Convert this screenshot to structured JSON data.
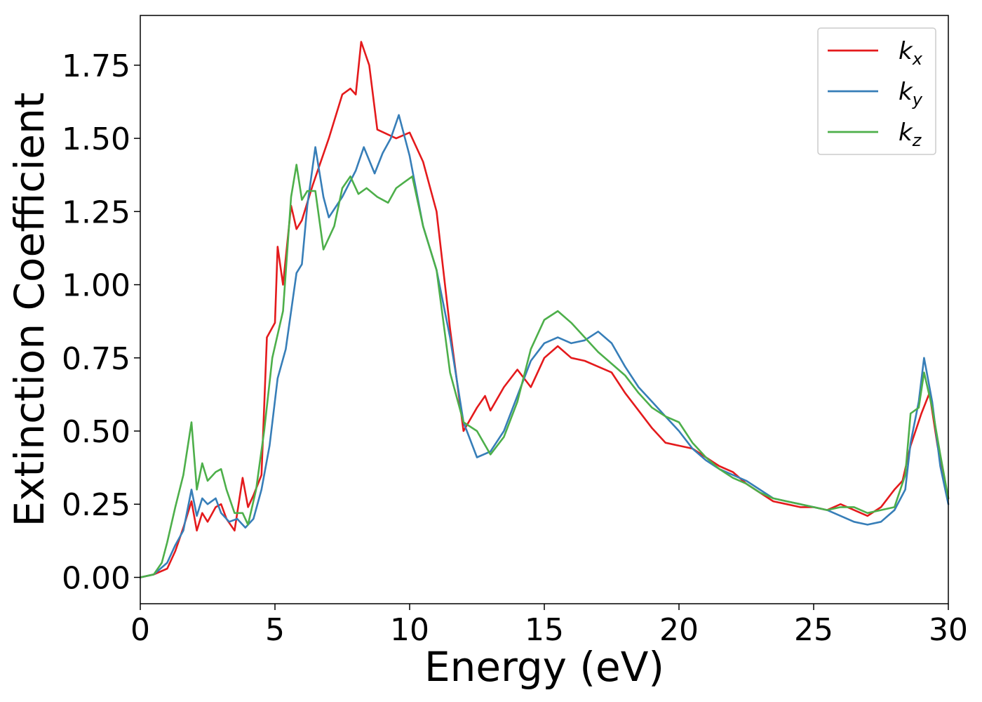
{
  "chart_data": {
    "type": "line",
    "title": "",
    "xlabel": "Energy (eV)",
    "ylabel": "Extinction Coefficient",
    "xlim": [
      0,
      30
    ],
    "ylim": [
      -0.09,
      1.92
    ],
    "xticks": [
      0,
      5,
      10,
      15,
      20,
      25,
      30
    ],
    "xtick_labels": [
      "0",
      "5",
      "10",
      "15",
      "20",
      "25",
      "30"
    ],
    "yticks": [
      0,
      0.25,
      0.5,
      0.75,
      1.0,
      1.25,
      1.5,
      1.75
    ],
    "ytick_labels": [
      "0.00",
      "0.25",
      "0.50",
      "0.75",
      "1.00",
      "1.25",
      "1.50",
      "1.75"
    ],
    "grid": false,
    "legend_position": "top-right",
    "series": [
      {
        "name": "k_x",
        "label_base": "k",
        "label_sub": "x",
        "color": "#e41a1c",
        "points": [
          [
            0,
            0
          ],
          [
            0.5,
            0.01
          ],
          [
            1.0,
            0.03
          ],
          [
            1.3,
            0.09
          ],
          [
            1.6,
            0.17
          ],
          [
            1.9,
            0.26
          ],
          [
            2.1,
            0.16
          ],
          [
            2.3,
            0.22
          ],
          [
            2.5,
            0.19
          ],
          [
            2.8,
            0.24
          ],
          [
            3.0,
            0.25
          ],
          [
            3.2,
            0.2
          ],
          [
            3.5,
            0.16
          ],
          [
            3.8,
            0.34
          ],
          [
            4.0,
            0.24
          ],
          [
            4.2,
            0.28
          ],
          [
            4.5,
            0.35
          ],
          [
            4.7,
            0.82
          ],
          [
            5.0,
            0.87
          ],
          [
            5.1,
            1.13
          ],
          [
            5.3,
            1.0
          ],
          [
            5.6,
            1.27
          ],
          [
            5.8,
            1.19
          ],
          [
            6.0,
            1.22
          ],
          [
            6.4,
            1.34
          ],
          [
            7.0,
            1.5
          ],
          [
            7.5,
            1.65
          ],
          [
            7.8,
            1.67
          ],
          [
            8.0,
            1.65
          ],
          [
            8.2,
            1.83
          ],
          [
            8.5,
            1.75
          ],
          [
            8.8,
            1.53
          ],
          [
            9.5,
            1.5
          ],
          [
            10.0,
            1.52
          ],
          [
            10.5,
            1.42
          ],
          [
            11.0,
            1.25
          ],
          [
            11.5,
            0.85
          ],
          [
            12.0,
            0.5
          ],
          [
            12.5,
            0.58
          ],
          [
            12.8,
            0.62
          ],
          [
            13.0,
            0.57
          ],
          [
            13.5,
            0.65
          ],
          [
            14.0,
            0.71
          ],
          [
            14.5,
            0.65
          ],
          [
            15.0,
            0.75
          ],
          [
            15.5,
            0.79
          ],
          [
            16.0,
            0.75
          ],
          [
            16.5,
            0.74
          ],
          [
            17.0,
            0.72
          ],
          [
            17.5,
            0.7
          ],
          [
            18.0,
            0.63
          ],
          [
            18.5,
            0.57
          ],
          [
            19.0,
            0.51
          ],
          [
            19.5,
            0.46
          ],
          [
            20.0,
            0.45
          ],
          [
            20.5,
            0.44
          ],
          [
            21.0,
            0.41
          ],
          [
            21.5,
            0.38
          ],
          [
            22.0,
            0.36
          ],
          [
            22.5,
            0.32
          ],
          [
            23.0,
            0.29
          ],
          [
            23.5,
            0.26
          ],
          [
            24.0,
            0.25
          ],
          [
            24.5,
            0.24
          ],
          [
            25.0,
            0.24
          ],
          [
            25.5,
            0.23
          ],
          [
            26.0,
            0.25
          ],
          [
            26.5,
            0.23
          ],
          [
            27.0,
            0.21
          ],
          [
            27.5,
            0.24
          ],
          [
            28.0,
            0.3
          ],
          [
            28.3,
            0.33
          ],
          [
            28.6,
            0.45
          ],
          [
            29.0,
            0.56
          ],
          [
            29.3,
            0.63
          ],
          [
            29.6,
            0.45
          ],
          [
            30.0,
            0.27
          ]
        ]
      },
      {
        "name": "k_y",
        "label_base": "k",
        "label_sub": "y",
        "color": "#377eb8",
        "points": [
          [
            0,
            0
          ],
          [
            0.5,
            0.01
          ],
          [
            1.0,
            0.05
          ],
          [
            1.3,
            0.11
          ],
          [
            1.6,
            0.16
          ],
          [
            1.9,
            0.3
          ],
          [
            2.1,
            0.21
          ],
          [
            2.3,
            0.27
          ],
          [
            2.5,
            0.25
          ],
          [
            2.8,
            0.27
          ],
          [
            3.0,
            0.22
          ],
          [
            3.3,
            0.19
          ],
          [
            3.6,
            0.2
          ],
          [
            3.9,
            0.17
          ],
          [
            4.2,
            0.2
          ],
          [
            4.5,
            0.3
          ],
          [
            4.8,
            0.45
          ],
          [
            5.1,
            0.68
          ],
          [
            5.4,
            0.78
          ],
          [
            5.8,
            1.04
          ],
          [
            6.0,
            1.07
          ],
          [
            6.2,
            1.27
          ],
          [
            6.5,
            1.47
          ],
          [
            6.8,
            1.3
          ],
          [
            7.0,
            1.23
          ],
          [
            7.5,
            1.3
          ],
          [
            8.0,
            1.39
          ],
          [
            8.3,
            1.47
          ],
          [
            8.7,
            1.38
          ],
          [
            9.0,
            1.45
          ],
          [
            9.3,
            1.5
          ],
          [
            9.6,
            1.58
          ],
          [
            10.0,
            1.44
          ],
          [
            10.5,
            1.2
          ],
          [
            11.0,
            1.05
          ],
          [
            11.5,
            0.82
          ],
          [
            12.0,
            0.53
          ],
          [
            12.5,
            0.41
          ],
          [
            13.0,
            0.43
          ],
          [
            13.5,
            0.5
          ],
          [
            14.0,
            0.62
          ],
          [
            14.5,
            0.74
          ],
          [
            15.0,
            0.8
          ],
          [
            15.5,
            0.82
          ],
          [
            16.0,
            0.8
          ],
          [
            16.5,
            0.81
          ],
          [
            17.0,
            0.84
          ],
          [
            17.5,
            0.8
          ],
          [
            18.0,
            0.72
          ],
          [
            18.5,
            0.65
          ],
          [
            19.0,
            0.6
          ],
          [
            19.5,
            0.55
          ],
          [
            20.0,
            0.5
          ],
          [
            20.5,
            0.44
          ],
          [
            21.0,
            0.4
          ],
          [
            21.5,
            0.37
          ],
          [
            22.0,
            0.35
          ],
          [
            22.5,
            0.33
          ],
          [
            23.0,
            0.3
          ],
          [
            23.5,
            0.27
          ],
          [
            24.0,
            0.26
          ],
          [
            24.5,
            0.25
          ],
          [
            25.0,
            0.24
          ],
          [
            25.5,
            0.23
          ],
          [
            26.0,
            0.21
          ],
          [
            26.5,
            0.19
          ],
          [
            27.0,
            0.18
          ],
          [
            27.5,
            0.19
          ],
          [
            28.0,
            0.23
          ],
          [
            28.4,
            0.3
          ],
          [
            28.6,
            0.46
          ],
          [
            28.9,
            0.6
          ],
          [
            29.1,
            0.75
          ],
          [
            29.4,
            0.6
          ],
          [
            29.7,
            0.38
          ],
          [
            30.0,
            0.25
          ]
        ]
      },
      {
        "name": "k_z",
        "label_base": "k",
        "label_sub": "z",
        "color": "#4daf4a",
        "points": [
          [
            0,
            0
          ],
          [
            0.5,
            0.01
          ],
          [
            0.8,
            0.05
          ],
          [
            1.0,
            0.12
          ],
          [
            1.3,
            0.24
          ],
          [
            1.6,
            0.35
          ],
          [
            1.9,
            0.53
          ],
          [
            2.1,
            0.3
          ],
          [
            2.3,
            0.39
          ],
          [
            2.5,
            0.33
          ],
          [
            2.8,
            0.36
          ],
          [
            3.0,
            0.37
          ],
          [
            3.2,
            0.3
          ],
          [
            3.5,
            0.22
          ],
          [
            3.8,
            0.22
          ],
          [
            4.0,
            0.18
          ],
          [
            4.3,
            0.3
          ],
          [
            4.6,
            0.5
          ],
          [
            4.9,
            0.75
          ],
          [
            5.3,
            0.91
          ],
          [
            5.6,
            1.3
          ],
          [
            5.8,
            1.41
          ],
          [
            6.0,
            1.29
          ],
          [
            6.2,
            1.32
          ],
          [
            6.5,
            1.32
          ],
          [
            6.8,
            1.12
          ],
          [
            7.2,
            1.2
          ],
          [
            7.5,
            1.33
          ],
          [
            7.8,
            1.37
          ],
          [
            8.1,
            1.31
          ],
          [
            8.4,
            1.33
          ],
          [
            8.8,
            1.3
          ],
          [
            9.2,
            1.28
          ],
          [
            9.5,
            1.33
          ],
          [
            9.8,
            1.35
          ],
          [
            10.1,
            1.37
          ],
          [
            10.5,
            1.2
          ],
          [
            11.0,
            1.05
          ],
          [
            11.5,
            0.7
          ],
          [
            12.0,
            0.53
          ],
          [
            12.5,
            0.5
          ],
          [
            13.0,
            0.42
          ],
          [
            13.5,
            0.48
          ],
          [
            14.0,
            0.6
          ],
          [
            14.5,
            0.78
          ],
          [
            15.0,
            0.88
          ],
          [
            15.5,
            0.91
          ],
          [
            16.0,
            0.87
          ],
          [
            16.5,
            0.82
          ],
          [
            17.0,
            0.77
          ],
          [
            17.5,
            0.73
          ],
          [
            18.0,
            0.69
          ],
          [
            18.5,
            0.63
          ],
          [
            19.0,
            0.58
          ],
          [
            19.5,
            0.55
          ],
          [
            20.0,
            0.53
          ],
          [
            20.5,
            0.46
          ],
          [
            21.0,
            0.41
          ],
          [
            21.5,
            0.37
          ],
          [
            22.0,
            0.34
          ],
          [
            22.5,
            0.32
          ],
          [
            23.0,
            0.29
          ],
          [
            23.5,
            0.27
          ],
          [
            24.0,
            0.26
          ],
          [
            24.5,
            0.25
          ],
          [
            25.0,
            0.24
          ],
          [
            25.5,
            0.23
          ],
          [
            26.0,
            0.24
          ],
          [
            26.5,
            0.24
          ],
          [
            27.0,
            0.22
          ],
          [
            27.5,
            0.23
          ],
          [
            28.0,
            0.24
          ],
          [
            28.4,
            0.35
          ],
          [
            28.6,
            0.56
          ],
          [
            28.9,
            0.58
          ],
          [
            29.1,
            0.7
          ],
          [
            29.4,
            0.58
          ],
          [
            29.7,
            0.42
          ],
          [
            30.0,
            0.27
          ]
        ]
      }
    ]
  }
}
